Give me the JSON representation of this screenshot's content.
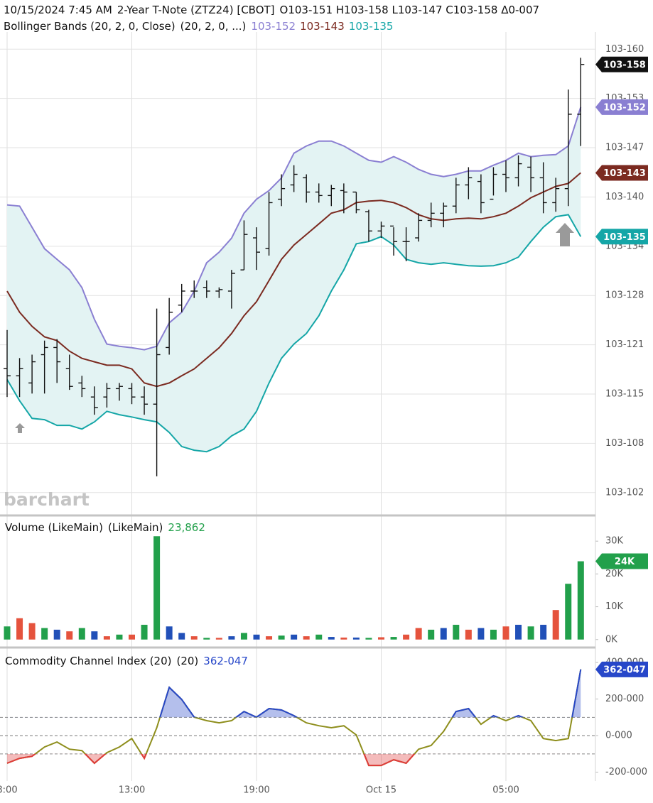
{
  "chart_data": [
    {
      "type": "ohlc",
      "timestamp": "10/15/2024 7:45 AM",
      "title": "2-Year T-Note (ZTZ24) [CBOT]",
      "quote": "O103-151 H103-158 L103-147 C103-158 Δ0-007",
      "watermark": "barchart",
      "ylim": [
        103.311,
        103.507
      ],
      "yticks": [
        {
          "value": 103.32,
          "label": "103-102"
        },
        {
          "value": 103.34,
          "label": "103-108"
        },
        {
          "value": 103.36,
          "label": "103-115"
        },
        {
          "value": 103.38,
          "label": "103-121"
        },
        {
          "value": 103.4,
          "label": "103-128"
        },
        {
          "value": 103.42,
          "label": "103-134"
        },
        {
          "value": 103.44,
          "label": "103-140"
        },
        {
          "value": 103.46,
          "label": "103-147"
        },
        {
          "value": 103.48,
          "label": "103-153"
        },
        {
          "value": 103.5,
          "label": "103-160"
        }
      ],
      "grid": true,
      "color": "#111111",
      "open": [
        103.3703,
        103.3674,
        103.3645,
        103.376,
        103.3789,
        103.3703,
        103.3645,
        103.3588,
        103.3588,
        103.3622,
        103.3622,
        103.3588,
        103.3559,
        103.3789,
        103.3961,
        103.4018,
        103.4033,
        103.4018,
        103.4018,
        103.4104,
        103.4234,
        103.4191,
        103.4391,
        103.4449,
        103.4478,
        103.442,
        103.4406,
        103.4426,
        103.442,
        103.434,
        103.4262,
        103.4282,
        103.4219,
        103.4234,
        103.4305,
        103.4334,
        103.4363,
        103.4449,
        103.4463,
        103.4391,
        103.4492,
        103.4478,
        103.4521,
        103.4478,
        103.4377,
        103.4434,
        103.4736
      ],
      "high": [
        103.386,
        103.3746,
        103.376,
        103.3817,
        103.3823,
        103.376,
        103.3674,
        103.3631,
        103.3645,
        103.3645,
        103.3645,
        103.3631,
        103.3947,
        103.399,
        103.4047,
        103.4061,
        103.4061,
        103.4033,
        103.4104,
        103.4305,
        103.4277,
        103.442,
        103.4492,
        103.4529,
        103.4492,
        103.4455,
        103.4449,
        103.4455,
        103.442,
        103.4348,
        103.43,
        103.4277,
        103.4277,
        103.4334,
        103.4377,
        103.4377,
        103.4478,
        103.4521,
        103.4492,
        103.4521,
        103.4549,
        103.4569,
        103.4564,
        103.4541,
        103.4478,
        103.4836,
        103.4965
      ],
      "low": [
        103.3588,
        103.3588,
        103.3602,
        103.3602,
        103.3645,
        103.3617,
        103.3588,
        103.3516,
        103.3545,
        103.3573,
        103.3559,
        103.3516,
        103.3266,
        103.376,
        103.3932,
        103.399,
        103.399,
        103.399,
        103.3947,
        103.4104,
        103.4104,
        103.4162,
        103.4363,
        103.442,
        103.4377,
        103.4377,
        103.4363,
        103.4334,
        103.4334,
        103.4219,
        103.4234,
        103.4162,
        103.4139,
        103.4219,
        103.4277,
        103.4277,
        103.4334,
        103.4391,
        103.4334,
        103.4406,
        103.442,
        103.4443,
        103.442,
        103.4334,
        103.434,
        103.4363,
        103.4607
      ],
      "close": [
        103.3674,
        103.3703,
        103.3731,
        103.3789,
        103.3731,
        103.3631,
        103.3622,
        103.3545,
        103.3622,
        103.3631,
        103.3588,
        103.3559,
        103.376,
        103.3932,
        103.4018,
        103.4018,
        103.4018,
        103.4024,
        103.409,
        103.4248,
        103.4176,
        103.4377,
        103.4434,
        103.4492,
        103.442,
        103.4406,
        103.4434,
        103.442,
        103.4348,
        103.4262,
        103.4282,
        103.4219,
        103.4219,
        103.4305,
        103.4334,
        103.4363,
        103.4449,
        103.4478,
        103.4377,
        103.4492,
        103.4478,
        103.4535,
        103.4478,
        103.4377,
        103.4434,
        103.4736,
        103.4938
      ],
      "value_labels": [
        null,
        null,
        null,
        null,
        null,
        null,
        null,
        null,
        null,
        null,
        null,
        null,
        null,
        null,
        null,
        null,
        null,
        null,
        null,
        null,
        null,
        null,
        null,
        null,
        null,
        null,
        null,
        null,
        null,
        null,
        null,
        null,
        null,
        null,
        null,
        null,
        null,
        null,
        null,
        null,
        null,
        null,
        null,
        null,
        null,
        null,
        "103-158"
      ],
      "bands": {
        "name": "Bollinger Bands (20, 2, 0, Close)",
        "params": "(20, 2, 0, ...)",
        "fill": "#e3f3f3",
        "series": [
          {
            "color": "#8a7fd2",
            "values": [
              103.4368,
              103.4363,
              103.4277,
              103.419,
              103.4147,
              103.4104,
              103.4032,
              103.3903,
              103.3803,
              103.3794,
              103.3788,
              103.378,
              103.3794,
              103.3889,
              103.3932,
              103.4018,
              103.4133,
              103.4176,
              103.4233,
              103.4334,
              103.4391,
              103.4426,
              103.4477,
              103.4578,
              103.4607,
              103.4627,
              103.4627,
              103.4607,
              103.4578,
              103.4549,
              103.4541,
              103.4564,
              103.4541,
              103.4512,
              103.4492,
              103.4483,
              103.4492,
              103.4506,
              103.4506,
              103.4529,
              103.4549,
              103.4578,
              103.4564,
              103.4569,
              103.4572,
              103.4607,
              103.4765
            ],
            "value_labels": [
              null,
              null,
              null,
              null,
              null,
              null,
              null,
              null,
              null,
              null,
              null,
              null,
              null,
              null,
              null,
              null,
              null,
              null,
              null,
              null,
              null,
              null,
              null,
              null,
              null,
              null,
              null,
              null,
              null,
              null,
              null,
              null,
              null,
              null,
              null,
              null,
              null,
              null,
              null,
              null,
              null,
              null,
              null,
              null,
              null,
              null,
              "103-152"
            ]
          },
          {
            "color": "#7b2a20",
            "values": [
              103.4018,
              103.3932,
              103.3875,
              103.3832,
              103.3817,
              103.3774,
              103.3745,
              103.3731,
              103.3717,
              103.3717,
              103.3702,
              103.3645,
              103.3631,
              103.3645,
              103.3674,
              103.3702,
              103.3745,
              103.3788,
              103.3846,
              103.3918,
              103.3975,
              103.4061,
              103.4147,
              103.4205,
              103.4248,
              103.4291,
              103.4334,
              103.4348,
              103.4377,
              103.4383,
              103.4386,
              103.4377,
              103.4357,
              103.4328,
              103.4311,
              103.4305,
              103.4311,
              103.4314,
              103.4311,
              103.432,
              103.4334,
              103.4363,
              103.4397,
              103.442,
              103.4443,
              103.4455,
              103.4498
            ],
            "value_labels": [
              null,
              null,
              null,
              null,
              null,
              null,
              null,
              null,
              null,
              null,
              null,
              null,
              null,
              null,
              null,
              null,
              null,
              null,
              null,
              null,
              null,
              null,
              null,
              null,
              null,
              null,
              null,
              null,
              null,
              null,
              null,
              null,
              null,
              null,
              null,
              null,
              null,
              null,
              null,
              null,
              null,
              null,
              null,
              null,
              null,
              null,
              "103-143"
            ]
          },
          {
            "color": "#15a6a7",
            "values": [
              103.3659,
              103.3573,
              103.3501,
              103.3496,
              103.3473,
              103.3473,
              103.3458,
              103.3487,
              103.353,
              103.3516,
              103.3507,
              103.3496,
              103.3487,
              103.3444,
              103.3387,
              103.3372,
              103.3366,
              103.3387,
              103.343,
              103.3458,
              103.353,
              103.3645,
              103.3745,
              103.3803,
              103.3846,
              103.3918,
              103.4018,
              103.4104,
              103.421,
              103.4219,
              103.4239,
              103.4205,
              103.4147,
              103.4133,
              103.4127,
              103.4133,
              103.4127,
              103.4121,
              103.4119,
              103.4121,
              103.4133,
              103.4156,
              103.4219,
              103.4277,
              103.432,
              103.4328,
              103.4239
            ],
            "value_labels": [
              null,
              null,
              null,
              null,
              null,
              null,
              null,
              null,
              null,
              null,
              null,
              null,
              null,
              null,
              null,
              null,
              null,
              null,
              null,
              null,
              null,
              null,
              null,
              null,
              null,
              null,
              null,
              null,
              null,
              null,
              null,
              null,
              null,
              null,
              null,
              null,
              null,
              null,
              null,
              null,
              null,
              null,
              null,
              null,
              null,
              null,
              "103-135"
            ]
          }
        ]
      }
    },
    {
      "type": "bar",
      "title": "Volume (LikeMain)",
      "params": "(LikeMain)",
      "ylim": [
        -2000,
        37400
      ],
      "yticks": [
        {
          "value": 0,
          "label": "0K"
        },
        {
          "value": 10000,
          "label": "10K"
        },
        {
          "value": 20000,
          "label": "20K"
        },
        {
          "value": 30000,
          "label": "30K"
        }
      ],
      "grid": false,
      "series": [
        {
          "values": [
            4000,
            6500,
            5000,
            3500,
            3000,
            2500,
            3500,
            2500,
            1000,
            1500,
            1500,
            4500,
            31500,
            4000,
            2000,
            1000,
            500,
            500,
            1000,
            2000,
            1500,
            1000,
            1200,
            1500,
            1000,
            1500,
            800,
            600,
            600,
            500,
            700,
            800,
            1500,
            3500,
            3000,
            3500,
            4500,
            3000,
            3500,
            3000,
            4000,
            4500,
            4000,
            4500,
            9000,
            17000,
            23862
          ],
          "colors": [
            "#22a04b",
            "#e5533d",
            "#e5533d",
            "#22a04b",
            "#2150b8",
            "#e5533d",
            "#22a04b",
            "#2150b8",
            "#e5533d",
            "#22a04b",
            "#e5533d",
            "#22a04b",
            "#22a04b",
            "#2150b8",
            "#2150b8",
            "#e5533d",
            "#22a04b",
            "#e5533d",
            "#2150b8",
            "#22a04b",
            "#2150b8",
            "#e5533d",
            "#22a04b",
            "#2150b8",
            "#e5533d",
            "#22a04b",
            "#2150b8",
            "#e5533d",
            "#2150b8",
            "#22a04b",
            "#e5533d",
            "#22a04b",
            "#e5533d",
            "#e5533d",
            "#22a04b",
            "#2150b8",
            "#22a04b",
            "#e5533d",
            "#2150b8",
            "#22a04b",
            "#e5533d",
            "#2150b8",
            "#22a04b",
            "#2150b8",
            "#e5533d",
            "#22a04b",
            "#22a04b"
          ],
          "value_labels": [
            null,
            null,
            null,
            null,
            null,
            null,
            null,
            null,
            null,
            null,
            null,
            null,
            null,
            null,
            null,
            null,
            null,
            null,
            null,
            null,
            null,
            null,
            null,
            null,
            null,
            null,
            null,
            null,
            null,
            null,
            null,
            null,
            null,
            null,
            null,
            null,
            null,
            null,
            null,
            null,
            null,
            null,
            null,
            null,
            null,
            null,
            "23,862"
          ],
          "axis_label": "24K"
        }
      ]
    },
    {
      "type": "line",
      "title": "Commodity Channel Index (20)",
      "params": "(20)",
      "categories": [
        "8:00",
        null,
        null,
        null,
        null,
        null,
        null,
        null,
        null,
        null,
        "13:00",
        null,
        null,
        null,
        null,
        null,
        null,
        null,
        null,
        null,
        "19:00",
        null,
        null,
        null,
        null,
        null,
        null,
        null,
        null,
        null,
        "Oct 15",
        null,
        null,
        null,
        null,
        null,
        null,
        null,
        null,
        null,
        "05:00",
        null,
        null,
        null,
        null,
        null,
        null
      ],
      "ylim": [
        -248,
        470
      ],
      "yticks": [
        {
          "value": -200,
          "label": "-200-000"
        },
        {
          "value": 0,
          "label": "0-000"
        },
        {
          "value": 200,
          "label": "200-000"
        },
        {
          "value": 400,
          "label": "400-000"
        }
      ],
      "levels": [
        100,
        0,
        -100
      ],
      "grid": false,
      "series": [
        {
          "color": "#8e8e1c",
          "fill_above": "#2747c9",
          "fill_below": "#e03b3b",
          "values": [
            -151,
            -124,
            -113,
            -62,
            -35,
            -74,
            -82,
            -151,
            -93,
            -62,
            -16,
            -124,
            43,
            264,
            198,
            101,
            82,
            70,
            82,
            132,
            101,
            148,
            140,
            109,
            70,
            54,
            43,
            54,
            4,
            -163,
            -163,
            -132,
            -151,
            -74,
            -54,
            23,
            132,
            148,
            62,
            109,
            82,
            109,
            82,
            -16,
            -27,
            -16,
            362.047
          ],
          "value_labels": [
            null,
            null,
            null,
            null,
            null,
            null,
            null,
            null,
            null,
            null,
            null,
            null,
            null,
            null,
            null,
            null,
            null,
            null,
            null,
            null,
            null,
            null,
            null,
            null,
            null,
            null,
            null,
            null,
            null,
            null,
            null,
            null,
            null,
            null,
            null,
            null,
            null,
            null,
            null,
            null,
            null,
            null,
            null,
            null,
            null,
            null,
            "362-047"
          ]
        }
      ]
    }
  ]
}
